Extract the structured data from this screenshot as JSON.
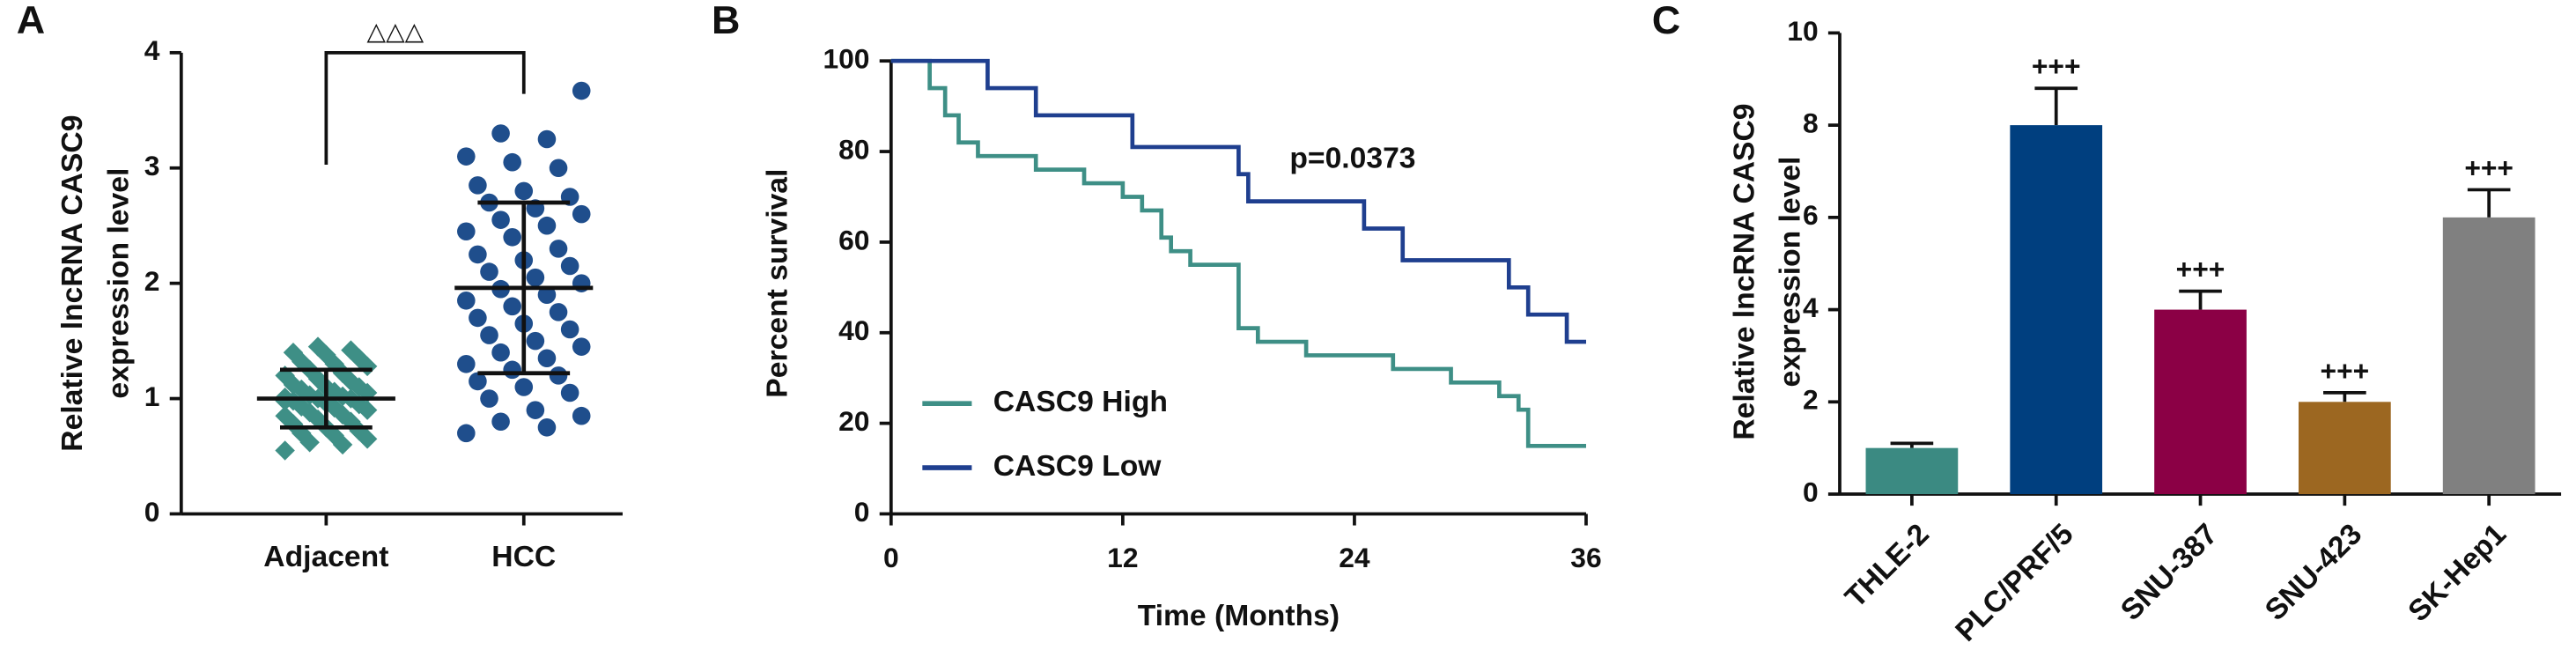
{
  "chart_data": [
    {
      "type": "dot",
      "panel": "A",
      "ylabel": [
        "Relative lncRNA CASC9",
        "expression level"
      ],
      "annotation": "△△△",
      "categories": [
        "Adjacent",
        "HCC"
      ],
      "groups": [
        {
          "color": "#3e8f86",
          "marker": "diamond",
          "mean": 1.0,
          "sd": 0.25,
          "values": [
            0.55,
            0.6,
            0.62,
            0.65,
            0.68,
            0.7,
            0.72,
            0.75,
            0.78,
            0.8,
            0.82,
            0.85,
            0.86,
            0.88,
            0.9,
            0.92,
            0.93,
            0.95,
            0.96,
            0.98,
            1.0,
            1.0,
            1.01,
            1.02,
            1.03,
            1.05,
            1.06,
            1.08,
            1.1,
            1.1,
            1.12,
            1.15,
            1.17,
            1.2,
            1.22,
            1.25,
            1.28,
            1.3,
            1.32,
            1.35,
            1.38,
            1.4,
            1.42,
            1.45,
            0.98
          ]
        },
        {
          "color": "#1f4e8c",
          "marker": "circle",
          "mean": 1.96,
          "sd": 0.74,
          "values": [
            0.7,
            0.75,
            0.8,
            0.85,
            0.9,
            1.0,
            1.05,
            1.1,
            1.15,
            1.2,
            1.25,
            1.3,
            1.35,
            1.4,
            1.45,
            1.5,
            1.55,
            1.6,
            1.65,
            1.7,
            1.75,
            1.8,
            1.85,
            1.9,
            1.95,
            2.0,
            2.05,
            2.1,
            2.15,
            2.2,
            2.25,
            2.3,
            2.4,
            2.45,
            2.5,
            2.55,
            2.6,
            2.65,
            2.7,
            2.75,
            2.8,
            2.85,
            3.0,
            3.05,
            3.1,
            3.25,
            3.3,
            3.67
          ]
        }
      ],
      "ylim": [
        0,
        4
      ],
      "yticks": [
        0,
        1,
        2,
        3,
        4
      ]
    },
    {
      "type": "line",
      "panel": "B",
      "xlabel": "Time (Months)",
      "ylabel": "Percent survival",
      "annotation": "p=0.0373",
      "legend": "lower left",
      "series": [
        {
          "name": "CASC9 High",
          "color": "#3e8f86",
          "x": [
            0,
            2,
            2,
            2.8,
            2.8,
            3.5,
            3.5,
            4.5,
            4.5,
            7.5,
            7.5,
            10,
            10,
            12,
            12,
            13,
            13,
            14,
            14,
            14.5,
            14.5,
            15.5,
            15.5,
            18,
            18,
            19,
            19,
            21.5,
            21.5,
            26,
            26,
            29,
            29,
            31.5,
            31.5,
            32.5,
            32.5,
            33,
            33,
            36
          ],
          "values": [
            100,
            100,
            94,
            94,
            88,
            88,
            82,
            82,
            79,
            79,
            76,
            76,
            73,
            73,
            70,
            70,
            67,
            67,
            61,
            61,
            58,
            58,
            55,
            55,
            41,
            41,
            38,
            38,
            35,
            35,
            32,
            32,
            29,
            29,
            26,
            26,
            23,
            23,
            15,
            15
          ]
        },
        {
          "name": "CASC9 Low",
          "color": "#1f3f8f",
          "x": [
            0,
            5,
            5,
            7.5,
            7.5,
            12.5,
            12.5,
            18,
            18,
            18.5,
            18.5,
            24.5,
            24.5,
            26.5,
            26.5,
            32,
            32,
            33,
            33,
            35,
            35,
            36
          ],
          "values": [
            100,
            100,
            94,
            94,
            88,
            88,
            81,
            81,
            75,
            75,
            69,
            69,
            63,
            63,
            56,
            56,
            50,
            50,
            44,
            44,
            38,
            38
          ]
        }
      ],
      "xlim": [
        0,
        36
      ],
      "xticks": [
        0,
        12,
        24,
        36
      ],
      "ylim": [
        0,
        100
      ],
      "yticks": [
        0,
        20,
        40,
        60,
        80,
        100
      ]
    },
    {
      "type": "bar",
      "panel": "C",
      "ylabel": [
        "Relative lncRNA CASC9",
        "expression level"
      ],
      "categories": [
        "THLE-2",
        "PLC/PRF/5",
        "SNU-387",
        "SNU-423",
        "SK-Hep1"
      ],
      "values": [
        1,
        8,
        4,
        2,
        6
      ],
      "errors": [
        0.1,
        0.8,
        0.4,
        0.2,
        0.6
      ],
      "colors": [
        "#3b8a82",
        "#003f7f",
        "#8b0045",
        "#9c6721",
        "#808080"
      ],
      "annotations": [
        null,
        "+++",
        "+++",
        "+++",
        "+++"
      ],
      "ylim": [
        0,
        10
      ],
      "yticks": [
        0,
        2,
        4,
        6,
        8,
        10
      ]
    }
  ]
}
